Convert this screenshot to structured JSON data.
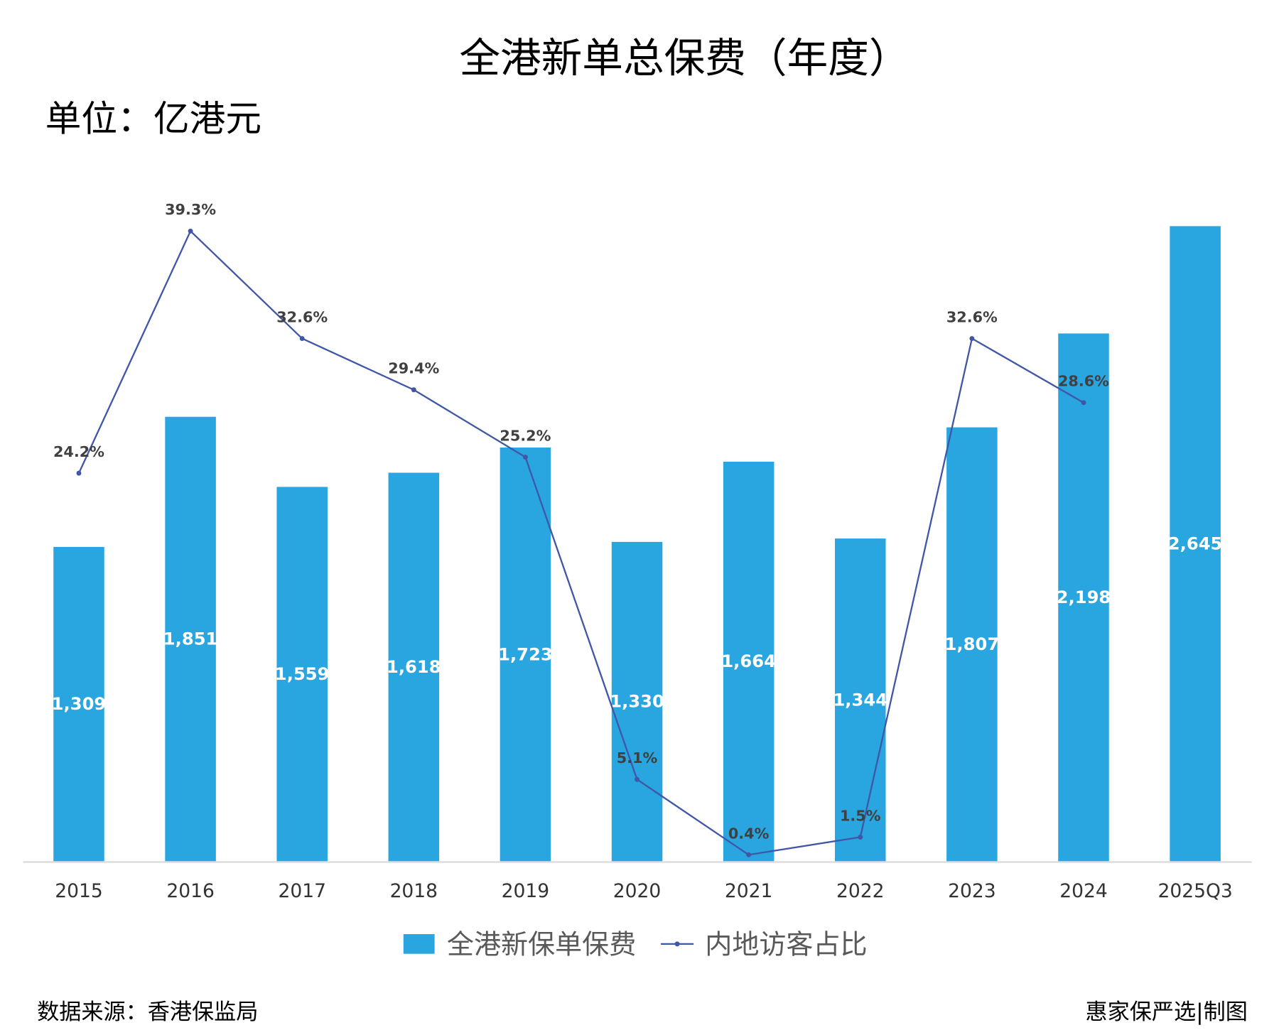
{
  "chart_data": {
    "type": "bar",
    "title": "全港新单总保费（年度）",
    "unit_label": "单位：亿港元",
    "categories": [
      "2015",
      "2016",
      "2017",
      "2018",
      "2019",
      "2020",
      "2021",
      "2022",
      "2023",
      "2024",
      "2025Q3"
    ],
    "series": [
      {
        "name": "全港新保单保费",
        "type": "bar",
        "color": "#29a5e0",
        "values": [
          1309,
          1851,
          1559,
          1618,
          1723,
          1330,
          1664,
          1344,
          1807,
          2198,
          2645
        ],
        "labels": [
          "1,309",
          "1,851",
          "1,559",
          "1,618",
          "1,723",
          "1,330",
          "1,664",
          "1,344",
          "1,807",
          "2,198",
          "2,645"
        ]
      },
      {
        "name": "内地访客占比",
        "type": "line",
        "color": "#3f57a6",
        "values": [
          24.2,
          39.3,
          32.6,
          29.4,
          25.2,
          5.1,
          0.4,
          1.5,
          32.6,
          28.6,
          null
        ],
        "labels": [
          "24.2%",
          "39.3%",
          "32.6%",
          "29.4%",
          "25.2%",
          "5.1%",
          "0.4%",
          "1.5%",
          "32.6%",
          "28.6%",
          ""
        ]
      }
    ],
    "ylim": [
      0,
      2645
    ],
    "y2lim": [
      0,
      39.3
    ],
    "grid": false,
    "legend_position": "bottom"
  },
  "footer": {
    "source": "数据来源：香港保监局",
    "credit": "惠家保严选|制图"
  }
}
